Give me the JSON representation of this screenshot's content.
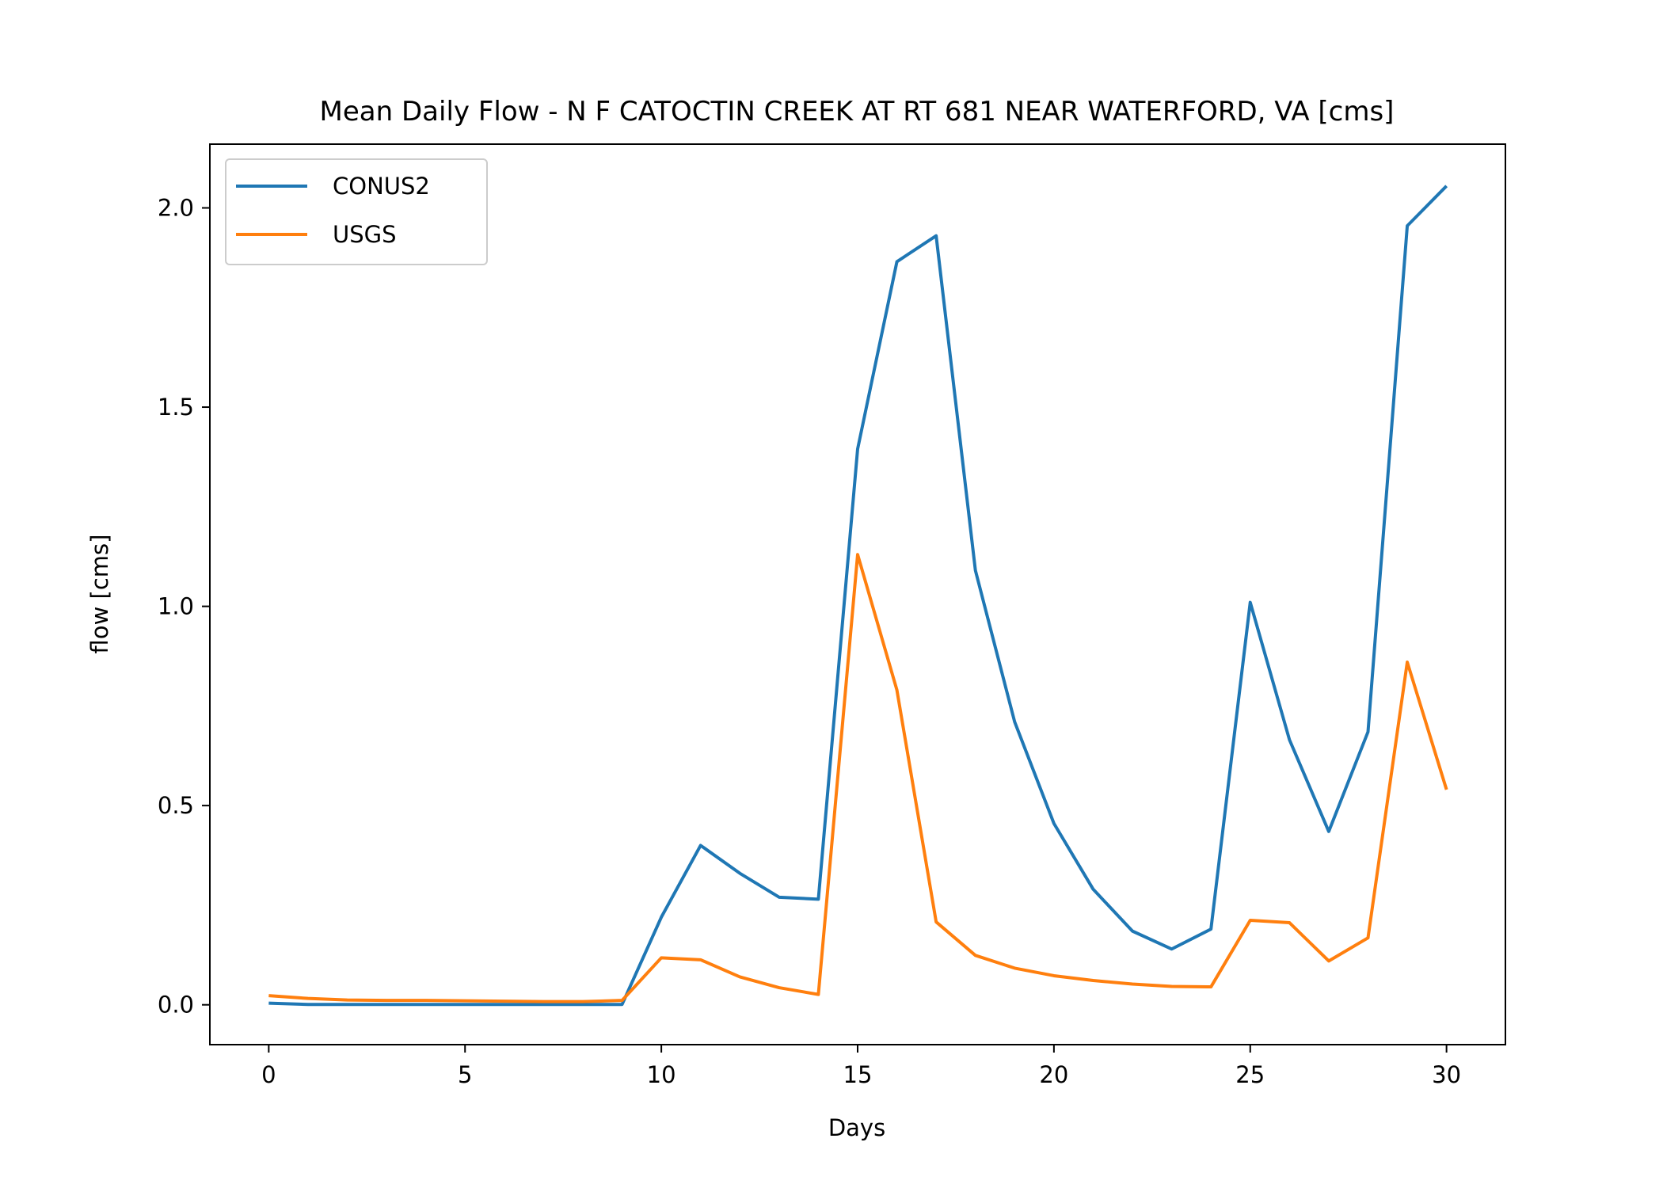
{
  "chart_data": {
    "type": "line",
    "title": "Mean Daily Flow - N F CATOCTIN CREEK AT RT 681 NEAR WATERFORD, VA [cms]",
    "xlabel": "Days",
    "ylabel": "flow [cms]",
    "xlim": [
      -1.5,
      31.5
    ],
    "ylim": [
      -0.1,
      2.16
    ],
    "xticks": [
      0,
      5,
      10,
      15,
      20,
      25,
      30
    ],
    "yticks": [
      0.0,
      0.5,
      1.0,
      1.5,
      2.0
    ],
    "xtick_labels": [
      "0",
      "5",
      "10",
      "15",
      "20",
      "25",
      "30"
    ],
    "ytick_labels": [
      "0.0",
      "0.5",
      "1.0",
      "1.5",
      "2.0"
    ],
    "grid": false,
    "legend_position": "top-left",
    "x": [
      0,
      1,
      2,
      3,
      4,
      5,
      6,
      7,
      8,
      9,
      10,
      11,
      12,
      13,
      14,
      15,
      16,
      17,
      18,
      19,
      20,
      21,
      22,
      23,
      24,
      25,
      26,
      27,
      28,
      29,
      30
    ],
    "series": [
      {
        "name": "CONUS2",
        "color": "#1f77b4",
        "values": [
          0.004,
          0.001,
          0.001,
          0.001,
          0.001,
          0.001,
          0.001,
          0.001,
          0.001,
          0.001,
          0.22,
          0.4,
          0.33,
          0.27,
          0.265,
          1.395,
          1.865,
          1.93,
          1.09,
          0.71,
          0.455,
          0.29,
          0.185,
          0.14,
          0.19,
          1.01,
          0.665,
          0.435,
          0.685,
          1.955,
          2.055
        ]
      },
      {
        "name": "USGS",
        "color": "#ff7f0e",
        "values": [
          0.023,
          0.016,
          0.012,
          0.011,
          0.011,
          0.01,
          0.009,
          0.008,
          0.008,
          0.011,
          0.118,
          0.113,
          0.07,
          0.043,
          0.026,
          1.13,
          0.79,
          0.208,
          0.124,
          0.092,
          0.073,
          0.061,
          0.052,
          0.046,
          0.045,
          0.212,
          0.206,
          0.11,
          0.168,
          0.86,
          0.54
        ]
      }
    ]
  }
}
